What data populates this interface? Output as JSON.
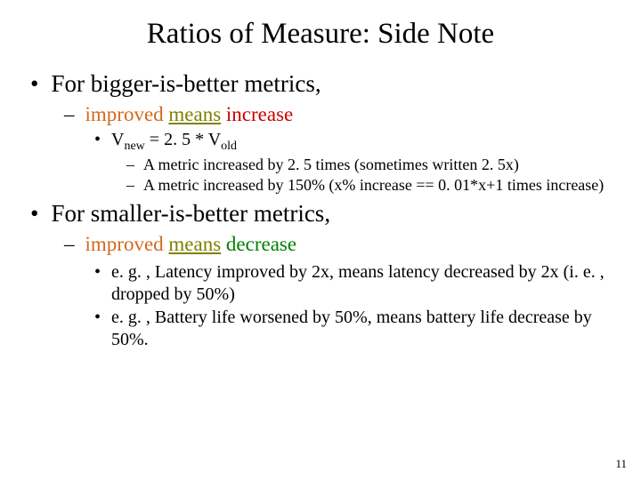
{
  "title": "Ratios of Measure: Side Note",
  "b1_1": "For bigger-is-better metrics,",
  "b2_1_pre": "improved ",
  "b2_1_u": "means",
  "b2_1_post": " increase",
  "b3_1_pre": "V",
  "b3_1_sub1": "new",
  "b3_1_mid": " = 2. 5 * V",
  "b3_1_sub2": "old",
  "b4_1": "A metric increased by 2. 5 times (sometimes written 2. 5x)",
  "b4_2": "A metric increased by 150% (x% increase == 0. 01*x+1 times increase)",
  "b1_2": "For smaller-is-better metrics,",
  "b2_2_pre": "improved ",
  "b2_2_u": "means",
  "b2_2_post": " decrease",
  "b3_2": "e. g. , Latency improved by 2x, means latency decreased by 2x (i. e. , dropped by 50%)",
  "b3_3": "e. g. , Battery life worsened by 50%, means battery life decrease by 50%.",
  "colors": {
    "improved": "#d2691e",
    "increase": "#cc0000",
    "decrease": "#008000",
    "means": "#808000"
  },
  "slide_number": "11"
}
